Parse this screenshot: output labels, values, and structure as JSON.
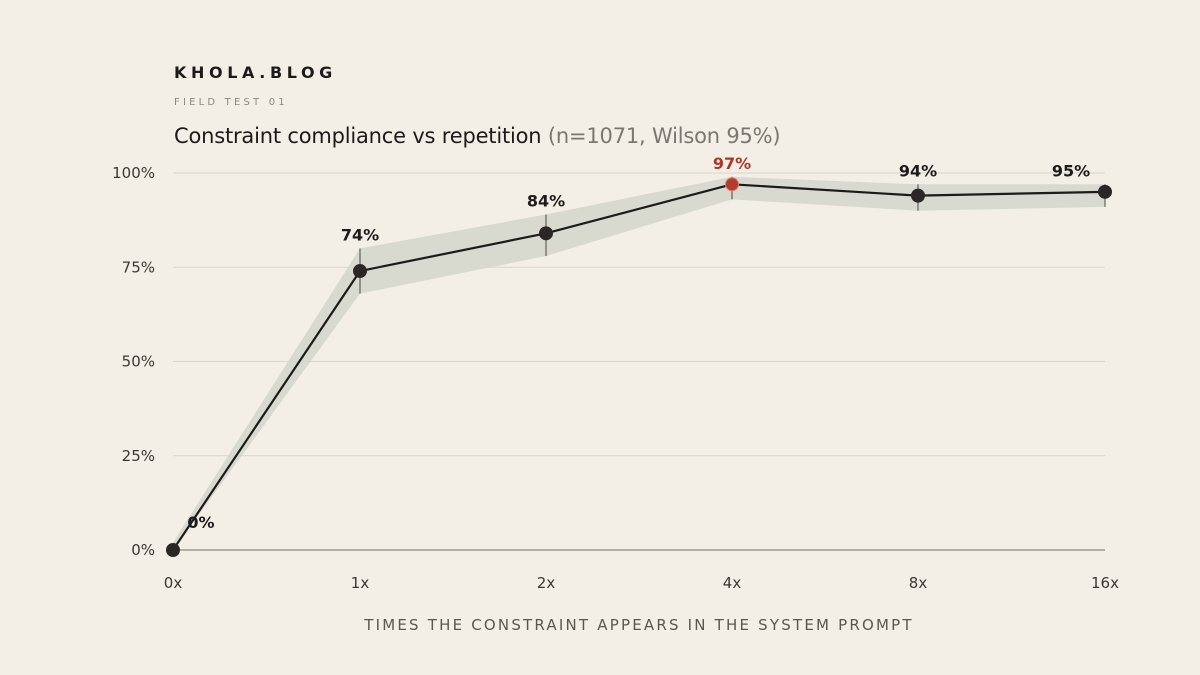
{
  "brand": "KHOLA.BLOG",
  "eyebrow": "FIELD TEST 01",
  "title": "Constraint compliance vs repetition",
  "subtitle": "(n=1071, Wilson 95%)",
  "chart_data": {
    "type": "line",
    "categories": [
      "0x",
      "1x",
      "2x",
      "4x",
      "8x",
      "16x"
    ],
    "values": [
      0,
      74,
      84,
      97,
      94,
      95
    ],
    "data_labels": [
      "0%",
      "74%",
      "84%",
      "97%",
      "94%",
      "95%"
    ],
    "ci_lower": [
      0,
      68,
      78,
      93,
      90,
      91
    ],
    "ci_upper": [
      2,
      80,
      89,
      99,
      97,
      97
    ],
    "highlight_index": 3,
    "yticks": [
      0,
      25,
      50,
      75,
      100
    ],
    "ytick_labels": [
      "0%",
      "25%",
      "50%",
      "75%",
      "100%"
    ],
    "ylim": [
      0,
      100
    ],
    "xlabel": "TIMES THE CONSTRAINT APPEARS IN THE SYSTEM PROMPT",
    "ylabel": "",
    "grid": true,
    "colors": {
      "line": "#1d1b19",
      "marker": "#2a2724",
      "highlight": "#b33a2c",
      "band": "#d6d8cf",
      "grid": "#d9d4ca",
      "baseline": "#8a867f"
    }
  }
}
